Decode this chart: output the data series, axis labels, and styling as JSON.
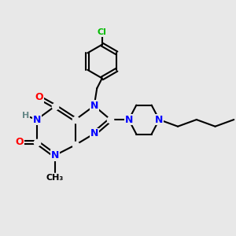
{
  "bg_color": "#e8e8e8",
  "bond_color": "#000000",
  "bond_width": 1.5,
  "atom_colors": {
    "N": "#0000ff",
    "O": "#ff0000",
    "Cl": "#00bb00",
    "H": "#668888",
    "C": "#000000"
  },
  "font_size_atom": 9,
  "font_size_small": 8,
  "figsize": [
    3.0,
    3.0
  ],
  "dpi": 100
}
